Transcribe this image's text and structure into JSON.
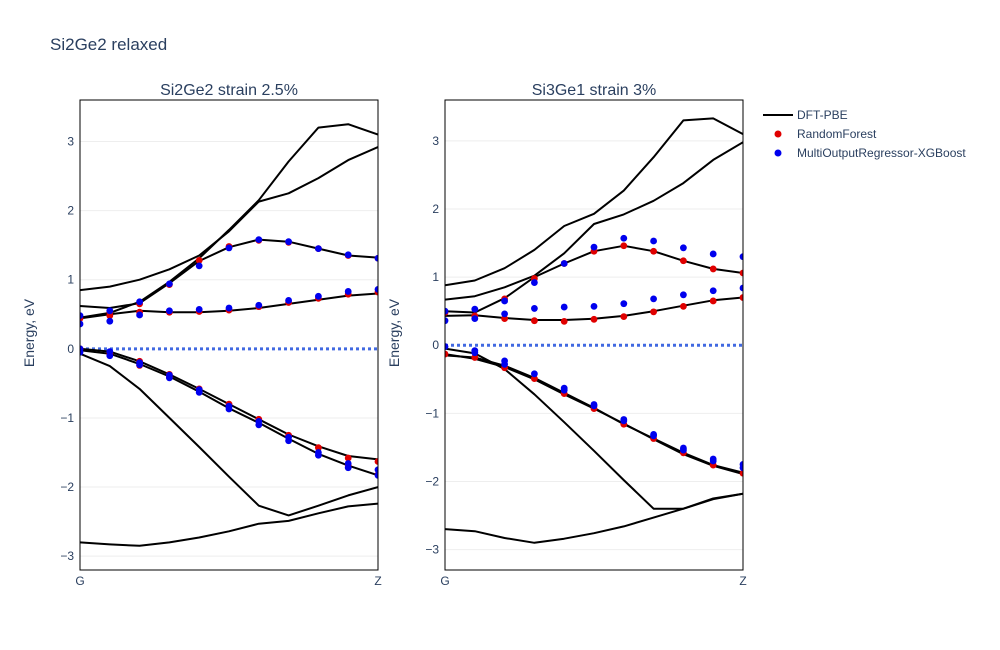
{
  "figure": {
    "title": "Si2Ge2 relaxed"
  },
  "legend": [
    {
      "name": "DFT-PBE",
      "color": "#000000",
      "kind": "line"
    },
    {
      "name": "RandomForest",
      "color": "#e00000",
      "kind": "marker"
    },
    {
      "name": "MultiOutputRegressor-XGBoost",
      "color": "#0000ee",
      "kind": "marker"
    }
  ],
  "chart_data": [
    {
      "type": "line",
      "title": "Si2Ge2 strain 2.5%",
      "xlabel": "",
      "ylabel": "Energy, eV",
      "xticks": [
        "G",
        "Z"
      ],
      "xlim": [
        0,
        10
      ],
      "ylim": [
        -3.2,
        3.6
      ],
      "yticks": [
        -3,
        -2,
        -1,
        0,
        1,
        2,
        3
      ],
      "fermi_level": 0,
      "x": [
        0,
        1,
        2,
        3,
        4,
        5,
        6,
        7,
        8,
        9,
        10
      ],
      "series": [
        {
          "name": "DFT-PBE",
          "values": [
            -2.8,
            -2.83,
            -2.85,
            -2.8,
            -2.73,
            -2.64,
            -2.53,
            -2.49,
            -2.38,
            -2.28,
            -2.24
          ]
        },
        {
          "name": "DFT-PBE",
          "values": [
            -0.07,
            -0.25,
            -0.58,
            -1.0,
            -1.42,
            -1.85,
            -2.27,
            -2.41,
            -2.27,
            -2.12,
            -2.0
          ]
        },
        {
          "name": "DFT-PBE",
          "values": [
            -0.02,
            -0.07,
            -0.22,
            -0.4,
            -0.62,
            -0.86,
            -1.07,
            -1.3,
            -1.52,
            -1.69,
            -1.83
          ]
        },
        {
          "name": "DFT-PBE",
          "values": [
            0.0,
            -0.04,
            -0.18,
            -0.37,
            -0.58,
            -0.8,
            -1.02,
            -1.24,
            -1.41,
            -1.55,
            -1.6
          ]
        },
        {
          "name": "DFT-PBE",
          "values": [
            0.44,
            0.5,
            0.55,
            0.53,
            0.53,
            0.55,
            0.59,
            0.65,
            0.71,
            0.77,
            0.8
          ]
        },
        {
          "name": "DFT-PBE",
          "values": [
            0.62,
            0.59,
            0.66,
            0.95,
            1.27,
            1.47,
            1.58,
            1.55,
            1.45,
            1.35,
            1.32
          ]
        },
        {
          "name": "DFT-PBE",
          "values": [
            0.45,
            0.52,
            0.68,
            0.97,
            1.31,
            1.72,
            2.15,
            2.71,
            3.2,
            3.25,
            3.1
          ]
        },
        {
          "name": "DFT-PBE",
          "values": [
            0.85,
            0.9,
            1.0,
            1.15,
            1.35,
            1.7,
            2.13,
            2.25,
            2.47,
            2.73,
            2.92
          ]
        }
      ],
      "markers": [
        {
          "name": "RandomForest",
          "points": [
            [
              0,
              0.44
            ],
            [
              1,
              0.48
            ],
            [
              2,
              0.53
            ],
            [
              3,
              0.53
            ],
            [
              4,
              0.54
            ],
            [
              5,
              0.56
            ],
            [
              6,
              0.61
            ],
            [
              7,
              0.67
            ],
            [
              8,
              0.73
            ],
            [
              9,
              0.79
            ],
            [
              10,
              0.82
            ],
            [
              1,
              0.53
            ],
            [
              2,
              0.65
            ],
            [
              3,
              0.93
            ],
            [
              4,
              1.28
            ],
            [
              5,
              1.48
            ],
            [
              6,
              1.57
            ],
            [
              7,
              1.54
            ],
            [
              8,
              1.45
            ],
            [
              9,
              1.35
            ],
            [
              10,
              1.31
            ],
            [
              0,
              0.0
            ],
            [
              1,
              -0.05
            ],
            [
              2,
              -0.18
            ],
            [
              3,
              -0.37
            ],
            [
              4,
              -0.58
            ],
            [
              5,
              -0.8
            ],
            [
              6,
              -1.02
            ],
            [
              7,
              -1.25
            ],
            [
              8,
              -1.43
            ],
            [
              9,
              -1.58
            ],
            [
              10,
              -1.63
            ],
            [
              1,
              -0.08
            ],
            [
              2,
              -0.24
            ],
            [
              3,
              -0.41
            ],
            [
              9,
              -1.68
            ],
            [
              10,
              -1.82
            ]
          ]
        },
        {
          "name": "MultiOutputRegressor-XGBoost",
          "points": [
            [
              0,
              0.48
            ],
            [
              0,
              0.36
            ],
            [
              1,
              0.55
            ],
            [
              1,
              0.4
            ],
            [
              2,
              0.68
            ],
            [
              2,
              0.49
            ],
            [
              3,
              0.94
            ],
            [
              3,
              0.55
            ],
            [
              4,
              1.2
            ],
            [
              4,
              0.57
            ],
            [
              5,
              1.46
            ],
            [
              5,
              0.59
            ],
            [
              6,
              1.58
            ],
            [
              6,
              0.63
            ],
            [
              7,
              1.55
            ],
            [
              7,
              0.7
            ],
            [
              8,
              1.45
            ],
            [
              8,
              0.76
            ],
            [
              9,
              1.36
            ],
            [
              9,
              0.83
            ],
            [
              10,
              1.31
            ],
            [
              10,
              0.86
            ],
            [
              0,
              -0.05
            ],
            [
              1,
              -0.1
            ],
            [
              2,
              -0.23
            ],
            [
              3,
              -0.42
            ],
            [
              4,
              -0.63
            ],
            [
              5,
              -0.87
            ],
            [
              6,
              -1.1
            ],
            [
              7,
              -1.33
            ],
            [
              8,
              -1.54
            ],
            [
              9,
              -1.72
            ],
            [
              10,
              -1.83
            ],
            [
              0,
              0.0
            ],
            [
              1,
              -0.04
            ],
            [
              2,
              -0.2
            ],
            [
              3,
              -0.38
            ],
            [
              4,
              -0.59
            ],
            [
              5,
              -0.83
            ],
            [
              6,
              -1.05
            ],
            [
              7,
              -1.28
            ],
            [
              8,
              -1.5
            ],
            [
              9,
              -1.66
            ],
            [
              10,
              -1.75
            ]
          ]
        }
      ]
    },
    {
      "type": "line",
      "title": "Si3Ge1 strain 3%",
      "xlabel": "",
      "ylabel": "Energy, eV",
      "xticks": [
        "G",
        "Z"
      ],
      "xlim": [
        0,
        10
      ],
      "ylim": [
        -3.3,
        3.6
      ],
      "yticks": [
        -3,
        -2,
        -1,
        0,
        1,
        2,
        3
      ],
      "fermi_level": 0,
      "x": [
        0,
        1,
        2,
        3,
        4,
        5,
        6,
        7,
        8,
        9,
        10
      ],
      "series": [
        {
          "name": "DFT-PBE",
          "values": [
            -2.7,
            -2.73,
            -2.83,
            -2.9,
            -2.84,
            -2.76,
            -2.66,
            -2.53,
            -2.4,
            -2.26,
            -2.18
          ]
        },
        {
          "name": "DFT-PBE",
          "values": [
            -0.05,
            -0.12,
            -0.35,
            -0.72,
            -1.13,
            -1.55,
            -1.98,
            -2.4,
            -2.4,
            -2.25,
            -2.18
          ]
        },
        {
          "name": "DFT-PBE",
          "values": [
            -0.15,
            -0.18,
            -0.3,
            -0.48,
            -0.7,
            -0.92,
            -1.16,
            -1.37,
            -1.58,
            -1.76,
            -1.87
          ]
        },
        {
          "name": "DFT-PBE",
          "values": [
            -0.13,
            -0.2,
            -0.32,
            -0.5,
            -0.72,
            -0.93,
            -1.15,
            -1.38,
            -1.6,
            -1.77,
            -1.89
          ]
        },
        {
          "name": "DFT-PBE",
          "values": [
            0.43,
            0.44,
            0.4,
            0.37,
            0.37,
            0.39,
            0.43,
            0.5,
            0.58,
            0.66,
            0.7
          ]
        },
        {
          "name": "DFT-PBE",
          "values": [
            0.5,
            0.48,
            0.69,
            1.0,
            1.2,
            1.38,
            1.46,
            1.38,
            1.24,
            1.12,
            1.06
          ]
        },
        {
          "name": "DFT-PBE",
          "values": [
            0.67,
            0.72,
            0.85,
            1.02,
            1.35,
            1.78,
            1.92,
            2.12,
            2.38,
            2.72,
            2.98
          ]
        },
        {
          "name": "DFT-PBE",
          "values": [
            0.88,
            0.95,
            1.13,
            1.4,
            1.75,
            1.93,
            2.27,
            2.76,
            3.3,
            3.33,
            3.1
          ]
        }
      ],
      "markers": [
        {
          "name": "RandomForest",
          "points": [
            [
              0,
              0.48
            ],
            [
              1,
              0.43
            ],
            [
              2,
              0.39
            ],
            [
              3,
              0.36
            ],
            [
              4,
              0.35
            ],
            [
              5,
              0.38
            ],
            [
              6,
              0.42
            ],
            [
              7,
              0.49
            ],
            [
              8,
              0.57
            ],
            [
              9,
              0.65
            ],
            [
              10,
              0.7
            ],
            [
              2,
              0.68
            ],
            [
              3,
              0.98
            ],
            [
              4,
              1.2
            ],
            [
              5,
              1.38
            ],
            [
              6,
              1.46
            ],
            [
              7,
              1.38
            ],
            [
              8,
              1.24
            ],
            [
              9,
              1.12
            ],
            [
              10,
              1.06
            ],
            [
              0,
              -0.13
            ],
            [
              1,
              -0.18
            ],
            [
              2,
              -0.33
            ],
            [
              3,
              -0.49
            ],
            [
              4,
              -0.71
            ],
            [
              5,
              -0.93
            ],
            [
              6,
              -1.16
            ],
            [
              7,
              -1.37
            ],
            [
              8,
              -1.58
            ],
            [
              9,
              -1.76
            ],
            [
              10,
              -1.88
            ]
          ]
        },
        {
          "name": "MultiOutputRegressor-XGBoost",
          "points": [
            [
              0,
              0.5
            ],
            [
              0,
              0.36
            ],
            [
              1,
              0.53
            ],
            [
              1,
              0.39
            ],
            [
              2,
              0.65
            ],
            [
              2,
              0.46
            ],
            [
              3,
              0.92
            ],
            [
              3,
              0.54
            ],
            [
              4,
              1.2
            ],
            [
              4,
              0.56
            ],
            [
              5,
              1.44
            ],
            [
              5,
              0.57
            ],
            [
              6,
              1.57
            ],
            [
              6,
              0.61
            ],
            [
              7,
              1.53
            ],
            [
              7,
              0.68
            ],
            [
              8,
              1.43
            ],
            [
              8,
              0.74
            ],
            [
              9,
              1.34
            ],
            [
              9,
              0.8
            ],
            [
              10,
              1.3
            ],
            [
              10,
              0.84
            ],
            [
              0,
              -0.02
            ],
            [
              1,
              -0.08
            ],
            [
              2,
              -0.23
            ],
            [
              3,
              -0.42
            ],
            [
              4,
              -0.63
            ],
            [
              5,
              -0.87
            ],
            [
              6,
              -1.09
            ],
            [
              7,
              -1.31
            ],
            [
              8,
              -1.51
            ],
            [
              9,
              -1.67
            ],
            [
              10,
              -1.75
            ],
            [
              1,
              -0.11
            ],
            [
              2,
              -0.28
            ],
            [
              4,
              -0.66
            ],
            [
              5,
              -0.89
            ],
            [
              6,
              -1.11
            ],
            [
              7,
              -1.33
            ],
            [
              8,
              -1.54
            ],
            [
              9,
              -1.7
            ],
            [
              10,
              -1.8
            ]
          ]
        }
      ]
    }
  ]
}
